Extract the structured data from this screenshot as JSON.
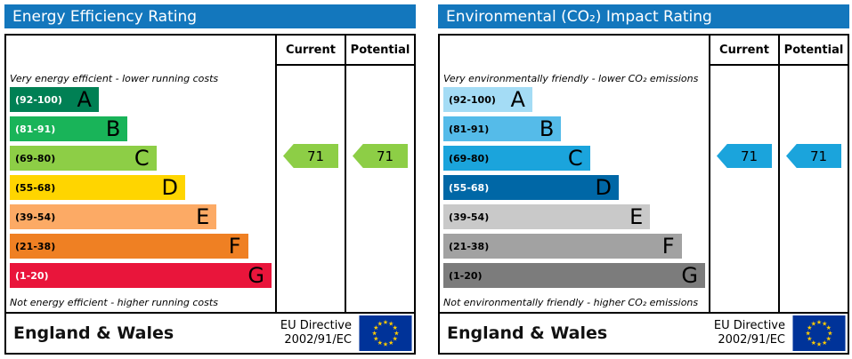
{
  "chart_data": [
    {
      "type": "bar",
      "title": "Energy Efficiency Rating",
      "header_color": "#1377bd",
      "col_current": "Current",
      "col_potential": "Potential",
      "top_caption": "Very energy efficient - lower running costs",
      "bottom_caption": "Not energy efficient - higher running costs",
      "bands": [
        {
          "letter": "A",
          "range_label": "(92-100)",
          "range": [
            92,
            100
          ],
          "color": "#008054",
          "width_pct": 34,
          "label_color": "#ffffff"
        },
        {
          "letter": "B",
          "range_label": "(81-91)",
          "range": [
            81,
            91
          ],
          "color": "#19b459",
          "width_pct": 45,
          "label_color": "#ffffff"
        },
        {
          "letter": "C",
          "range_label": "(69-80)",
          "range": [
            69,
            80
          ],
          "color": "#8dce46",
          "width_pct": 56,
          "label_color": "#000000"
        },
        {
          "letter": "D",
          "range_label": "(55-68)",
          "range": [
            55,
            68
          ],
          "color": "#ffd500",
          "width_pct": 67,
          "label_color": "#000000"
        },
        {
          "letter": "E",
          "range_label": "(39-54)",
          "range": [
            39,
            54
          ],
          "color": "#fcaa65",
          "width_pct": 79,
          "label_color": "#000000"
        },
        {
          "letter": "F",
          "range_label": "(21-38)",
          "range": [
            21,
            38
          ],
          "color": "#ef8023",
          "width_pct": 91,
          "label_color": "#000000"
        },
        {
          "letter": "G",
          "range_label": "(1-20)",
          "range": [
            1,
            20
          ],
          "color": "#e9153b",
          "width_pct": 100,
          "label_color": "#ffffff"
        }
      ],
      "current": {
        "value": 71,
        "band": "C",
        "color": "#8dce46"
      },
      "potential": {
        "value": 71,
        "band": "C",
        "color": "#8dce46"
      },
      "footer": {
        "region": "England & Wales",
        "directive": [
          "EU Directive",
          "2002/91/EC"
        ]
      }
    },
    {
      "type": "bar",
      "title": "Environmental (CO₂) Impact Rating",
      "header_color": "#1377bd",
      "col_current": "Current",
      "col_potential": "Potential",
      "top_caption": "Very environmentally friendly - lower CO₂ emissions",
      "bottom_caption": "Not environmentally friendly - higher CO₂ emissions",
      "bands": [
        {
          "letter": "A",
          "range_label": "(92-100)",
          "range": [
            92,
            100
          ],
          "color": "#a4dcf5",
          "width_pct": 34,
          "label_color": "#000000"
        },
        {
          "letter": "B",
          "range_label": "(81-91)",
          "range": [
            81,
            91
          ],
          "color": "#55bbe9",
          "width_pct": 45,
          "label_color": "#000000"
        },
        {
          "letter": "C",
          "range_label": "(69-80)",
          "range": [
            69,
            80
          ],
          "color": "#1ba4dc",
          "width_pct": 56,
          "label_color": "#000000"
        },
        {
          "letter": "D",
          "range_label": "(55-68)",
          "range": [
            55,
            68
          ],
          "color": "#0067a6",
          "width_pct": 67,
          "label_color": "#ffffff"
        },
        {
          "letter": "E",
          "range_label": "(39-54)",
          "range": [
            39,
            54
          ],
          "color": "#c9c9c9",
          "width_pct": 79,
          "label_color": "#000000"
        },
        {
          "letter": "F",
          "range_label": "(21-38)",
          "range": [
            21,
            38
          ],
          "color": "#a2a2a2",
          "width_pct": 91,
          "label_color": "#000000"
        },
        {
          "letter": "G",
          "range_label": "(1-20)",
          "range": [
            1,
            20
          ],
          "color": "#7c7c7c",
          "width_pct": 100,
          "label_color": "#000000"
        }
      ],
      "current": {
        "value": 71,
        "band": "C",
        "color": "#1ba4dc"
      },
      "potential": {
        "value": 71,
        "band": "C",
        "color": "#1ba4dc"
      },
      "footer": {
        "region": "England & Wales",
        "directive": [
          "EU Directive",
          "2002/91/EC"
        ]
      }
    }
  ]
}
